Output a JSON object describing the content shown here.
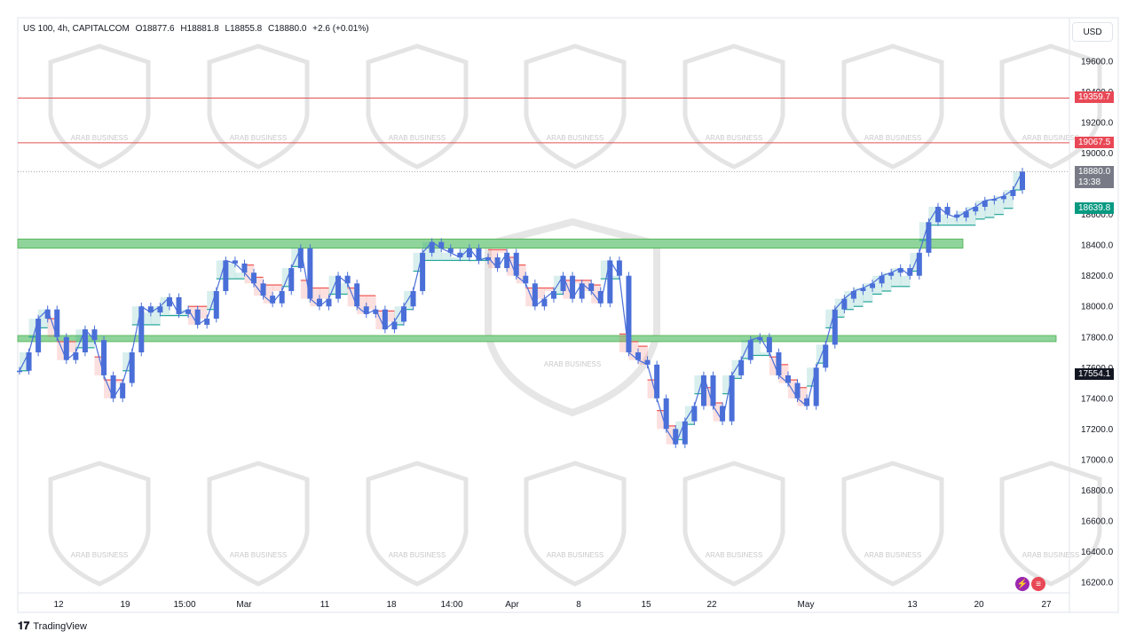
{
  "header": {
    "symbol": "US 100, 4h, CAPITALCOM",
    "open": "O18877.6",
    "high": "H18881.8",
    "low": "L18855.8",
    "close": "C18880.0",
    "change": "+2.6 (+0.01%)"
  },
  "currency": "USD",
  "branding": "TradingView",
  "watermark_text": "ARAB BUSINESS",
  "price_labels": {
    "resistance_high": "19359.7",
    "resistance_mid": "19067.5",
    "last_price": "18880.0",
    "countdown": "13:38",
    "stop_level": "18639.8",
    "crosshair": "17554.1"
  },
  "colors": {
    "candle": "#4a6fd8",
    "line_red": "#e05050",
    "zone_green": "#8fd49a",
    "fill_green": "#26a69a",
    "fill_red": "#ef5350",
    "tag_red": "#e84855",
    "tag_grey": "#787b86",
    "tag_teal": "#089981",
    "tag_black": "#131722"
  },
  "chart_data": {
    "type": "line",
    "title": "US 100, 4h, CAPITALCOM",
    "xlabel": "",
    "ylabel": "",
    "ylim": [
      16100,
      19750
    ],
    "y_ticks": [
      "19600.0",
      "19400.0",
      "19200.0",
      "19000.0",
      "18800.0",
      "18600.0",
      "18400.0",
      "18200.0",
      "18000.0",
      "17800.0",
      "17600.0",
      "17400.0",
      "17200.0",
      "17000.0",
      "16800.0",
      "16600.0",
      "16400.0",
      "16200.0"
    ],
    "x_ticks": [
      "12",
      "19",
      "15:00",
      "Mar",
      "11",
      "18",
      "14:00",
      "Apr",
      "8",
      "15",
      "22",
      "May",
      "13",
      "20",
      "27"
    ],
    "grid": false,
    "horizontal_lines": [
      19359.7,
      19067.5
    ],
    "zones": [
      [
        18380,
        18440
      ],
      [
        17770,
        17810
      ]
    ],
    "series": [
      {
        "values": [
          17580,
          17700,
          17920,
          17980,
          17800,
          17650,
          17700,
          17850,
          17780,
          17550,
          17400,
          17500,
          17700,
          18000,
          17960,
          18000,
          18060,
          17950,
          17980,
          17880,
          17920,
          18100,
          18300,
          18280,
          18220,
          18150,
          18070,
          18020,
          18100,
          18250,
          18380,
          18050,
          18000,
          18050,
          18200,
          18150,
          18000,
          17950,
          17980,
          17850,
          17900,
          18000,
          18100,
          18350,
          18420,
          18380,
          18350,
          18320,
          18380,
          18300,
          18320,
          18250,
          18350,
          18200,
          18150,
          18000,
          18050,
          18100,
          18200,
          18050,
          18150,
          18100,
          18020,
          18300,
          18200,
          17700,
          17650,
          17620,
          17400,
          17200,
          17100,
          17250,
          17350,
          17550,
          17350,
          17250,
          17550,
          17650,
          17780,
          17800,
          17700,
          17550,
          17500,
          17400,
          17350,
          17600,
          17750,
          17980,
          18050,
          18100,
          18120,
          18150,
          18200,
          18220,
          18250,
          18200,
          18350,
          18550,
          18650,
          18600,
          18580,
          18620,
          18650,
          18690,
          18700,
          18720,
          18760,
          18880
        ]
      }
    ]
  }
}
